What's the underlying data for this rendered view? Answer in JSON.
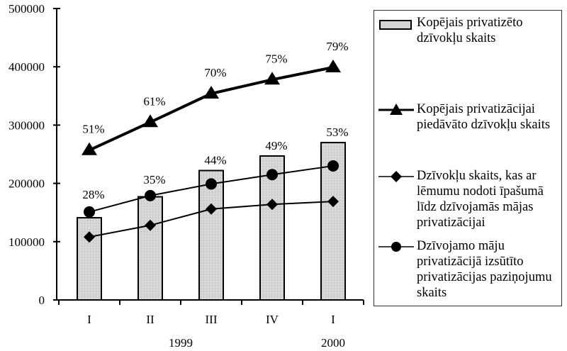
{
  "chart_data": {
    "type": "bar+line",
    "categories": [
      "I",
      "II",
      "III",
      "IV",
      "I"
    ],
    "year_labels": [
      {
        "label": "1999",
        "under": 2
      },
      {
        "label": "2000",
        "under": 4
      }
    ],
    "ylim": [
      0,
      500000
    ],
    "yticks": [
      "0",
      "100000",
      "200000",
      "300000",
      "400000",
      "500000"
    ],
    "grid": false,
    "legend_position": "right",
    "series": [
      {
        "name": "Kopējais privatizēto dzīvokļu skaits",
        "kind": "bar",
        "values": [
          141000,
          177000,
          222000,
          247000,
          270000
        ],
        "labels": [
          "28%",
          "35%",
          "44%",
          "49%",
          "53%"
        ],
        "color": "#d4d4d4"
      },
      {
        "name": "Kopējais privatizācijai piedāvāto dzīvokļu skaits",
        "kind": "line",
        "marker": "triangle",
        "values": [
          257000,
          305000,
          354000,
          378000,
          399000
        ],
        "labels": [
          "51%",
          "61%",
          "70%",
          "75%",
          "79%"
        ],
        "color": "#000000"
      },
      {
        "name": "Dzīvokļu skaits, kas ar lēmumu nodoti īpašumā līdz dzīvojamās mājas privatizācijai",
        "kind": "line",
        "marker": "diamond",
        "values": [
          108000,
          128000,
          156000,
          164000,
          169000
        ],
        "color": "#000000"
      },
      {
        "name": "Dzīvojamo māju privatizācijā izsūtīto privatizācijas paziņojumu skaits",
        "kind": "line",
        "marker": "circle",
        "values": [
          151000,
          179000,
          199000,
          215000,
          230000
        ],
        "color": "#000000"
      }
    ]
  }
}
